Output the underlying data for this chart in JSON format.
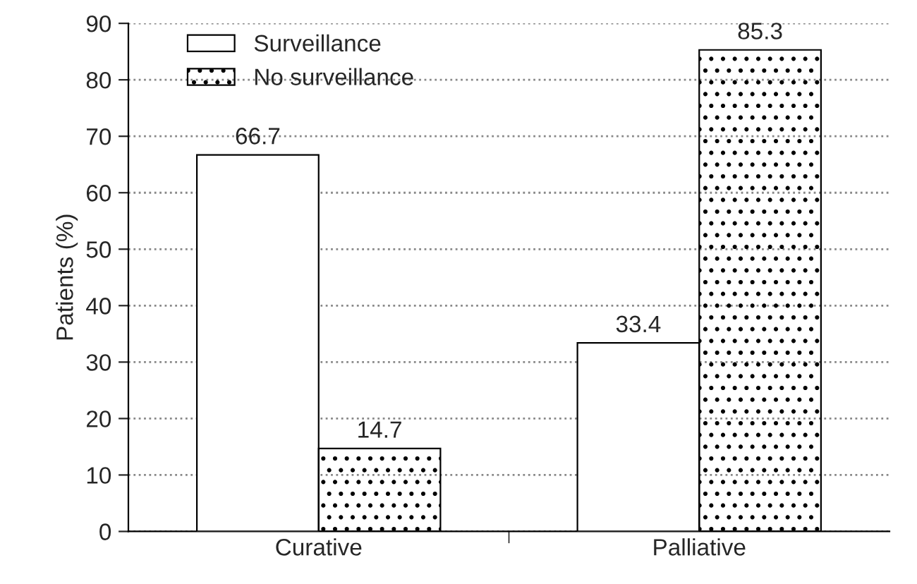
{
  "chart_data": {
    "type": "bar",
    "ylabel": "Patients (%)",
    "categories": [
      "Curative",
      "Palliative"
    ],
    "series": [
      {
        "name": "Surveillance",
        "color": "#ffffff",
        "values": [
          66.7,
          33.4
        ]
      },
      {
        "name": "No surveillance",
        "color": "#000000",
        "values": [
          14.7,
          85.3
        ]
      }
    ],
    "ylim": [
      0,
      90
    ],
    "yticks": [
      0,
      10,
      20,
      30,
      40,
      50,
      60,
      70,
      80,
      90
    ],
    "grid": "y",
    "legend": "top left",
    "data_labels": true
  }
}
